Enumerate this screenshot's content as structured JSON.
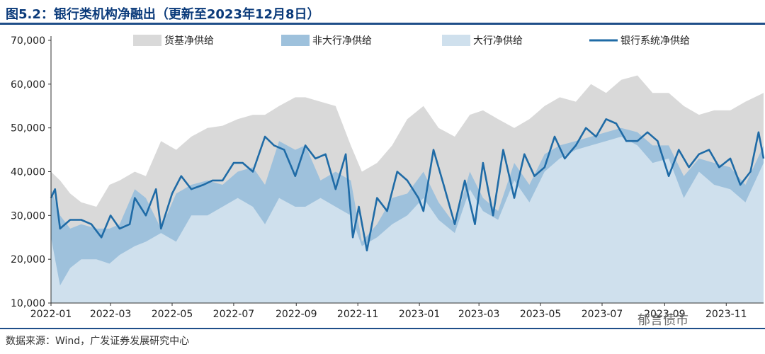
{
  "title": "图5.2：银行类机构净融出（更新至2023年12月8日）",
  "source": "数据来源：Wind，广发证券发展研究中心",
  "watermark": "郁言债市",
  "colors": {
    "total": "#d9d9d9",
    "non_large": "#9ec1dc",
    "large": "#cfe0ed",
    "bank_system": "#1f6ba6",
    "title": "#0a3a7a",
    "rule": "#1f4e89"
  },
  "chart_data": {
    "type": "area",
    "title": "图5.2：银行类机构净融出（更新至2023年12月8日）",
    "xlabel": "",
    "ylabel": "",
    "ylim": [
      10000,
      70000
    ],
    "yticks": [
      10000,
      20000,
      30000,
      40000,
      50000,
      60000,
      70000
    ],
    "ytick_labels": [
      "10,000",
      "20,000",
      "30,000",
      "40,000",
      "50,000",
      "60,000",
      "70,000"
    ],
    "xlim": [
      "2022-01-01",
      "2023-12-08"
    ],
    "xtick_labels": [
      "2022-01",
      "2022-03",
      "2022-05",
      "2022-07",
      "2022-09",
      "2022-11",
      "2023-01",
      "2023-03",
      "2023-05",
      "2023-07",
      "2023-09",
      "2023-11"
    ],
    "xtick_dates": [
      "2022-01-01",
      "2022-03-01",
      "2022-05-01",
      "2022-07-01",
      "2022-09-01",
      "2022-11-01",
      "2023-01-01",
      "2023-03-01",
      "2023-05-01",
      "2023-07-01",
      "2023-09-01",
      "2023-11-01"
    ],
    "grid": false,
    "legend_position": "top",
    "series": [
      {
        "name": "货基净供给",
        "kind": "area",
        "x": [
          "2022-01-01",
          "2022-01-10",
          "2022-01-20",
          "2022-01-31",
          "2022-02-15",
          "2022-02-28",
          "2022-03-10",
          "2022-03-25",
          "2022-04-05",
          "2022-04-20",
          "2022-05-05",
          "2022-05-20",
          "2022-06-05",
          "2022-06-20",
          "2022-07-05",
          "2022-07-20",
          "2022-08-01",
          "2022-08-15",
          "2022-08-31",
          "2022-09-10",
          "2022-09-25",
          "2022-10-10",
          "2022-10-25",
          "2022-11-05",
          "2022-11-20",
          "2022-12-05",
          "2022-12-20",
          "2023-01-05",
          "2023-01-20",
          "2023-02-05",
          "2023-02-20",
          "2023-03-05",
          "2023-03-20",
          "2023-04-05",
          "2023-04-20",
          "2023-05-05",
          "2023-05-20",
          "2023-06-05",
          "2023-06-20",
          "2023-07-05",
          "2023-07-20",
          "2023-08-05",
          "2023-08-20",
          "2023-09-05",
          "2023-09-20",
          "2023-10-05",
          "2023-10-20",
          "2023-11-05",
          "2023-11-20",
          "2023-12-08"
        ],
        "y": [
          40000,
          38000,
          35000,
          33000,
          32000,
          37000,
          38000,
          40000,
          39000,
          47000,
          45000,
          48000,
          50000,
          50500,
          52000,
          53000,
          53000,
          55000,
          57000,
          57000,
          56000,
          55000,
          46000,
          40000,
          42000,
          46000,
          52000,
          55000,
          50000,
          48000,
          53000,
          54000,
          52000,
          50000,
          52000,
          55000,
          57000,
          56000,
          60000,
          58000,
          61000,
          62000,
          58000,
          58000,
          55000,
          53000,
          54000,
          54000,
          56000,
          58000
        ]
      },
      {
        "name": "非大行净供给",
        "kind": "area",
        "x": [
          "2022-01-01",
          "2022-01-10",
          "2022-01-20",
          "2022-01-31",
          "2022-02-15",
          "2022-02-28",
          "2022-03-10",
          "2022-03-25",
          "2022-04-05",
          "2022-04-20",
          "2022-05-05",
          "2022-05-20",
          "2022-06-05",
          "2022-06-20",
          "2022-07-05",
          "2022-07-20",
          "2022-08-01",
          "2022-08-15",
          "2022-08-31",
          "2022-09-10",
          "2022-09-25",
          "2022-10-10",
          "2022-10-25",
          "2022-11-05",
          "2022-11-20",
          "2022-12-05",
          "2022-12-20",
          "2023-01-05",
          "2023-01-20",
          "2023-02-05",
          "2023-02-20",
          "2023-03-05",
          "2023-03-20",
          "2023-04-05",
          "2023-04-20",
          "2023-05-05",
          "2023-05-20",
          "2023-06-05",
          "2023-06-20",
          "2023-07-05",
          "2023-07-20",
          "2023-08-05",
          "2023-08-20",
          "2023-09-05",
          "2023-09-20",
          "2023-10-05",
          "2023-10-20",
          "2023-11-05",
          "2023-11-20",
          "2023-12-08"
        ],
        "y": [
          36000,
          30000,
          27000,
          28000,
          27000,
          27000,
          28000,
          36000,
          34000,
          27000,
          35000,
          37000,
          38000,
          37000,
          40000,
          41000,
          37000,
          47000,
          45000,
          46000,
          38000,
          40000,
          38000,
          24000,
          28000,
          34000,
          35000,
          40000,
          33000,
          28000,
          40000,
          34000,
          31000,
          42000,
          37000,
          44000,
          46000,
          47000,
          48000,
          49000,
          50000,
          49000,
          46000,
          46000,
          39000,
          43000,
          42000,
          41000,
          37000,
          46000
        ]
      },
      {
        "name": "大行净供给",
        "kind": "area",
        "x": [
          "2022-01-01",
          "2022-01-10",
          "2022-01-20",
          "2022-01-31",
          "2022-02-15",
          "2022-02-28",
          "2022-03-10",
          "2022-03-25",
          "2022-04-05",
          "2022-04-20",
          "2022-05-05",
          "2022-05-20",
          "2022-06-05",
          "2022-06-20",
          "2022-07-05",
          "2022-07-20",
          "2022-08-01",
          "2022-08-15",
          "2022-08-31",
          "2022-09-10",
          "2022-09-25",
          "2022-10-10",
          "2022-10-25",
          "2022-11-05",
          "2022-11-20",
          "2022-12-05",
          "2022-12-20",
          "2023-01-05",
          "2023-01-20",
          "2023-02-05",
          "2023-02-20",
          "2023-03-05",
          "2023-03-20",
          "2023-04-05",
          "2023-04-20",
          "2023-05-05",
          "2023-05-20",
          "2023-06-05",
          "2023-06-20",
          "2023-07-05",
          "2023-07-20",
          "2023-08-05",
          "2023-08-20",
          "2023-09-05",
          "2023-09-20",
          "2023-10-05",
          "2023-10-20",
          "2023-11-05",
          "2023-11-20",
          "2023-12-08"
        ],
        "y": [
          25000,
          14000,
          18000,
          20000,
          20000,
          19000,
          21000,
          23000,
          24000,
          26000,
          24000,
          30000,
          30000,
          32000,
          34000,
          32000,
          28000,
          34000,
          32000,
          32000,
          34000,
          32000,
          30000,
          23000,
          25000,
          28000,
          30000,
          34000,
          29000,
          26000,
          36000,
          31000,
          29000,
          38000,
          33000,
          40000,
          43000,
          45000,
          46000,
          47000,
          48000,
          46000,
          42000,
          43000,
          34000,
          40000,
          37000,
          36000,
          33000,
          42000
        ]
      },
      {
        "name": "银行系统净供给",
        "kind": "line",
        "x": [
          "2022-01-01",
          "2022-01-05",
          "2022-01-10",
          "2022-01-20",
          "2022-01-31",
          "2022-02-10",
          "2022-02-20",
          "2022-03-01",
          "2022-03-10",
          "2022-03-20",
          "2022-03-25",
          "2022-04-05",
          "2022-04-15",
          "2022-04-20",
          "2022-05-01",
          "2022-05-10",
          "2022-05-20",
          "2022-06-01",
          "2022-06-10",
          "2022-06-20",
          "2022-07-01",
          "2022-07-10",
          "2022-07-20",
          "2022-08-01",
          "2022-08-10",
          "2022-08-20",
          "2022-08-31",
          "2022-09-10",
          "2022-09-20",
          "2022-09-30",
          "2022-10-10",
          "2022-10-20",
          "2022-10-27",
          "2022-11-02",
          "2022-11-10",
          "2022-11-20",
          "2022-11-30",
          "2022-12-10",
          "2022-12-20",
          "2022-12-31",
          "2023-01-05",
          "2023-01-15",
          "2023-01-25",
          "2023-02-05",
          "2023-02-15",
          "2023-02-25",
          "2023-03-05",
          "2023-03-15",
          "2023-03-25",
          "2023-04-05",
          "2023-04-15",
          "2023-04-25",
          "2023-05-05",
          "2023-05-15",
          "2023-05-25",
          "2023-06-05",
          "2023-06-15",
          "2023-06-25",
          "2023-07-05",
          "2023-07-15",
          "2023-07-25",
          "2023-08-05",
          "2023-08-15",
          "2023-08-25",
          "2023-09-05",
          "2023-09-15",
          "2023-09-25",
          "2023-10-05",
          "2023-10-15",
          "2023-10-25",
          "2023-11-05",
          "2023-11-15",
          "2023-11-25",
          "2023-12-03",
          "2023-12-08"
        ],
        "y": [
          34000,
          36000,
          27000,
          29000,
          29000,
          28000,
          25000,
          30000,
          27000,
          28000,
          34000,
          30000,
          36000,
          27000,
          35000,
          39000,
          36000,
          37000,
          38000,
          38000,
          42000,
          42000,
          40000,
          48000,
          46000,
          45000,
          39000,
          46000,
          43000,
          44000,
          36000,
          44000,
          25000,
          32000,
          22000,
          34000,
          31000,
          40000,
          38000,
          34000,
          31000,
          45000,
          37000,
          28000,
          38000,
          28000,
          42000,
          30000,
          45000,
          34000,
          44000,
          39000,
          41000,
          48000,
          43000,
          46000,
          50000,
          48000,
          52000,
          51000,
          47000,
          47000,
          49000,
          47000,
          39000,
          45000,
          41000,
          44000,
          45000,
          41000,
          43000,
          37000,
          40000,
          49000,
          43000
        ]
      }
    ]
  }
}
